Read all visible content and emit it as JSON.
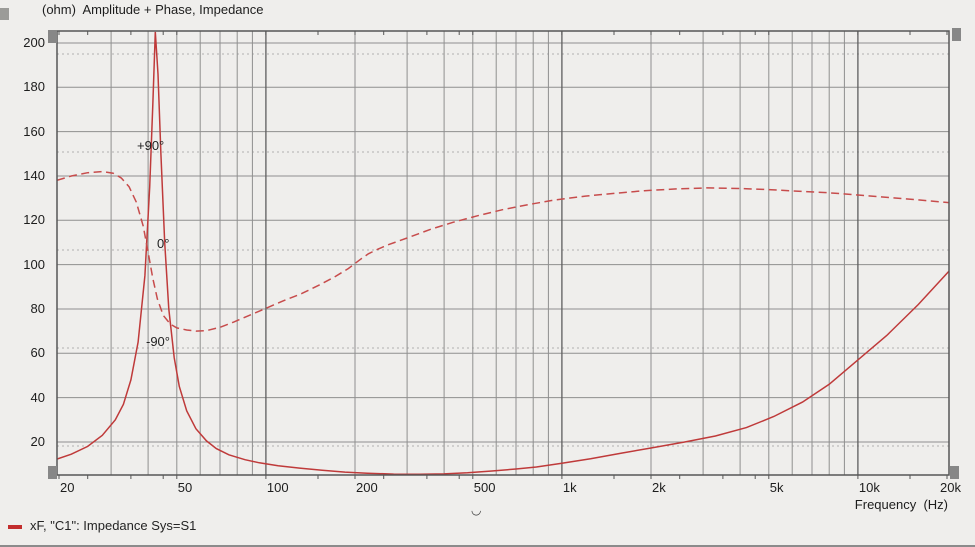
{
  "window": {
    "background": "#efeeec"
  },
  "chart_data": {
    "type": "line",
    "title": "(ohm)  Amplitude + Phase, Impedance",
    "xlabel": "Frequency  (Hz)",
    "x_scale": "log",
    "x_range_hz": [
      19.7,
      20300
    ],
    "x_tick_labels": [
      "20",
      "50",
      "100",
      "200",
      "500",
      "1k",
      "2k",
      "5k",
      "10k",
      "20k"
    ],
    "x_tick_hz": [
      20,
      50,
      100,
      200,
      500,
      1000,
      2000,
      5000,
      10000,
      20000
    ],
    "y_unit": "ohm",
    "y_tick_ohm": [
      200,
      180,
      160,
      140,
      120,
      100,
      80,
      60,
      40,
      20
    ],
    "y_range_ohm": [
      5.0,
      205.5
    ],
    "grid": true,
    "phase_axis": {
      "gridlines_deg": [
        180,
        90,
        0,
        -90,
        -180
      ],
      "labels": [
        {
          "text": "+90°",
          "deg": 90
        },
        {
          "text": "0°",
          "deg": 0
        },
        {
          "text": "-90°",
          "deg": -90
        }
      ]
    },
    "series": [
      {
        "name": "Impedance amplitude",
        "unit": "ohm",
        "line": "solid",
        "color": "#bf3a3a",
        "points": [
          [
            19.7,
            12.3
          ],
          [
            22,
            14.5
          ],
          [
            25,
            18
          ],
          [
            28,
            23
          ],
          [
            31,
            30
          ],
          [
            33,
            37
          ],
          [
            35,
            48
          ],
          [
            37,
            65
          ],
          [
            39,
            95
          ],
          [
            40.5,
            135
          ],
          [
            41.5,
            172
          ],
          [
            42.3,
            205
          ],
          [
            43.2,
            186
          ],
          [
            44.2,
            150
          ],
          [
            45.5,
            110
          ],
          [
            47,
            80
          ],
          [
            49,
            58
          ],
          [
            51,
            45
          ],
          [
            54,
            34
          ],
          [
            58,
            26
          ],
          [
            63,
            20.5
          ],
          [
            68,
            17
          ],
          [
            75,
            14.2
          ],
          [
            85,
            12
          ],
          [
            95,
            10.6
          ],
          [
            110,
            9.3
          ],
          [
            130,
            8.2
          ],
          [
            155,
            7.2
          ],
          [
            185,
            6.4
          ],
          [
            220,
            5.9
          ],
          [
            270,
            5.5
          ],
          [
            330,
            5.4
          ],
          [
            400,
            5.6
          ],
          [
            480,
            6.1
          ],
          [
            580,
            6.9
          ],
          [
            700,
            7.8
          ],
          [
            820,
            8.7
          ],
          [
            1000,
            10.4
          ],
          [
            1250,
            12.4
          ],
          [
            1600,
            15
          ],
          [
            2000,
            17.3
          ],
          [
            2600,
            20
          ],
          [
            3300,
            22.7
          ],
          [
            4200,
            26.5
          ],
          [
            5200,
            31.5
          ],
          [
            6500,
            38
          ],
          [
            8000,
            46
          ],
          [
            10000,
            57
          ],
          [
            12500,
            68
          ],
          [
            16000,
            82
          ],
          [
            20300,
            97
          ]
        ]
      },
      {
        "name": "Impedance phase",
        "unit": "deg",
        "line": "dashed",
        "color": "#c74c4c",
        "points": [
          [
            19.7,
            64
          ],
          [
            22,
            68
          ],
          [
            25,
            71
          ],
          [
            28,
            72
          ],
          [
            30.5,
            70.5
          ],
          [
            32.5,
            66
          ],
          [
            34.5,
            58
          ],
          [
            36.5,
            44
          ],
          [
            38.5,
            22
          ],
          [
            40,
            -2
          ],
          [
            41.5,
            -26
          ],
          [
            43,
            -45
          ],
          [
            45,
            -60
          ],
          [
            47.5,
            -68
          ],
          [
            50,
            -71.5
          ],
          [
            54,
            -73.5
          ],
          [
            58,
            -74.5
          ],
          [
            63,
            -74
          ],
          [
            70,
            -71
          ],
          [
            78,
            -66
          ],
          [
            88,
            -60
          ],
          [
            100,
            -53.5
          ],
          [
            115,
            -46.5
          ],
          [
            132,
            -40
          ],
          [
            152,
            -32
          ],
          [
            170,
            -25
          ],
          [
            190,
            -17
          ],
          [
            210,
            -8
          ],
          [
            222,
            -3.5
          ],
          [
            240,
            1
          ],
          [
            260,
            5
          ],
          [
            300,
            11
          ],
          [
            360,
            19
          ],
          [
            430,
            25.5
          ],
          [
            520,
            31.5
          ],
          [
            630,
            37
          ],
          [
            780,
            42
          ],
          [
            950,
            46
          ],
          [
            1200,
            49.5
          ],
          [
            1500,
            52
          ],
          [
            1900,
            54.5
          ],
          [
            2400,
            56
          ],
          [
            3100,
            57
          ],
          [
            4000,
            56.5
          ],
          [
            5000,
            55.5
          ],
          [
            6300,
            54
          ],
          [
            8000,
            52.5
          ],
          [
            10000,
            50.5
          ],
          [
            13000,
            48
          ],
          [
            16000,
            46
          ],
          [
            20300,
            43.5
          ]
        ]
      }
    ],
    "legend": [
      {
        "marker_color": "#c22d2d",
        "label": "xF, \"C1\": Impedance Sys=S1"
      }
    ],
    "cursor_glyph": "◡",
    "colors": {
      "grid_minor": "#8f8f8f",
      "grid_decade": "#5e5e5e",
      "grid_phase_dotted": "#b0b0b0",
      "plot_border": "#565656",
      "text": "#1d1d1d"
    }
  }
}
